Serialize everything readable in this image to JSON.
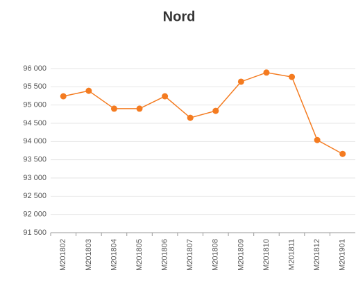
{
  "chart_data": {
    "type": "line",
    "title": "Nord",
    "categories": [
      "M201802",
      "M201803",
      "M201804",
      "M201805",
      "M201806",
      "M201807",
      "M201808",
      "M201809",
      "M201810",
      "M201811",
      "M201812",
      "M201901"
    ],
    "series": [
      {
        "name": "Nord",
        "color": "#f47b20",
        "values": [
          95240,
          95390,
          94900,
          94900,
          95240,
          94650,
          94840,
          95640,
          95890,
          95770,
          94040,
          93660
        ]
      }
    ],
    "ylim": [
      91500,
      96000
    ],
    "yticks": [
      {
        "value": 91500,
        "label": "91 500"
      },
      {
        "value": 92000,
        "label": "92 000"
      },
      {
        "value": 92500,
        "label": "92 500"
      },
      {
        "value": 93000,
        "label": "93 000"
      },
      {
        "value": 93500,
        "label": "93 500"
      },
      {
        "value": 94000,
        "label": "94 000"
      },
      {
        "value": 94500,
        "label": "94 500"
      },
      {
        "value": 95000,
        "label": "95 000"
      },
      {
        "value": 95500,
        "label": "95 500"
      },
      {
        "value": 96000,
        "label": "96 000"
      }
    ],
    "grid": true
  }
}
